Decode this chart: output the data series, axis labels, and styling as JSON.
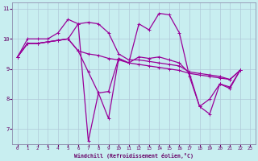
{
  "xlabel": "Windchill (Refroidissement éolien,°C)",
  "xlim": [
    -0.5,
    23.5
  ],
  "ylim": [
    6.5,
    11.2
  ],
  "yticks": [
    7,
    8,
    9,
    10,
    11
  ],
  "xticks": [
    0,
    1,
    2,
    3,
    4,
    5,
    6,
    7,
    8,
    9,
    10,
    11,
    12,
    13,
    14,
    15,
    16,
    17,
    18,
    19,
    20,
    21,
    22,
    23
  ],
  "line_color": "#990099",
  "bg_color": "#c8eef0",
  "grid_color": "#b0c8d8",
  "lines": [
    {
      "x": [
        0,
        1,
        2,
        3,
        4,
        5,
        6,
        7,
        8,
        9,
        10,
        11,
        12,
        13,
        14,
        15,
        16,
        17,
        18,
        19,
        20,
        21,
        22
      ],
      "y": [
        9.4,
        10.0,
        10.0,
        10.0,
        10.2,
        10.65,
        10.5,
        6.6,
        8.2,
        7.35,
        9.35,
        9.2,
        10.5,
        10.3,
        10.85,
        10.8,
        10.2,
        8.75,
        7.75,
        7.5,
        8.5,
        8.4,
        8.95
      ]
    },
    {
      "x": [
        0,
        1,
        2,
        3,
        4,
        5,
        6,
        7,
        8,
        9,
        10,
        11,
        12,
        13,
        14,
        15,
        16,
        17,
        18,
        19,
        20,
        21,
        22
      ],
      "y": [
        9.4,
        9.85,
        9.85,
        9.9,
        9.95,
        10.0,
        9.6,
        9.5,
        9.45,
        9.35,
        9.3,
        9.2,
        9.15,
        9.1,
        9.05,
        9.0,
        8.95,
        8.85,
        8.8,
        8.75,
        8.7,
        8.65,
        8.95
      ]
    },
    {
      "x": [
        0,
        1,
        2,
        3,
        4,
        5,
        6,
        7,
        8,
        9,
        10,
        11,
        12,
        13,
        14,
        15,
        16,
        17,
        18,
        19,
        20,
        21,
        22
      ],
      "y": [
        9.4,
        9.85,
        9.85,
        9.9,
        9.95,
        10.0,
        10.5,
        10.55,
        10.5,
        10.2,
        9.5,
        9.3,
        9.3,
        9.25,
        9.2,
        9.15,
        9.1,
        8.9,
        8.85,
        8.8,
        8.75,
        8.65,
        8.95
      ]
    },
    {
      "x": [
        0,
        1,
        2,
        3,
        4,
        5,
        6,
        7,
        8,
        9,
        10,
        11,
        12,
        13,
        14,
        15,
        16,
        17,
        18,
        19,
        20,
        21,
        22
      ],
      "y": [
        9.4,
        9.85,
        9.85,
        9.9,
        9.95,
        10.0,
        9.6,
        8.9,
        8.2,
        8.25,
        9.35,
        9.2,
        9.4,
        9.35,
        9.4,
        9.3,
        9.2,
        8.85,
        7.75,
        8.0,
        8.5,
        8.35,
        8.95
      ]
    }
  ]
}
